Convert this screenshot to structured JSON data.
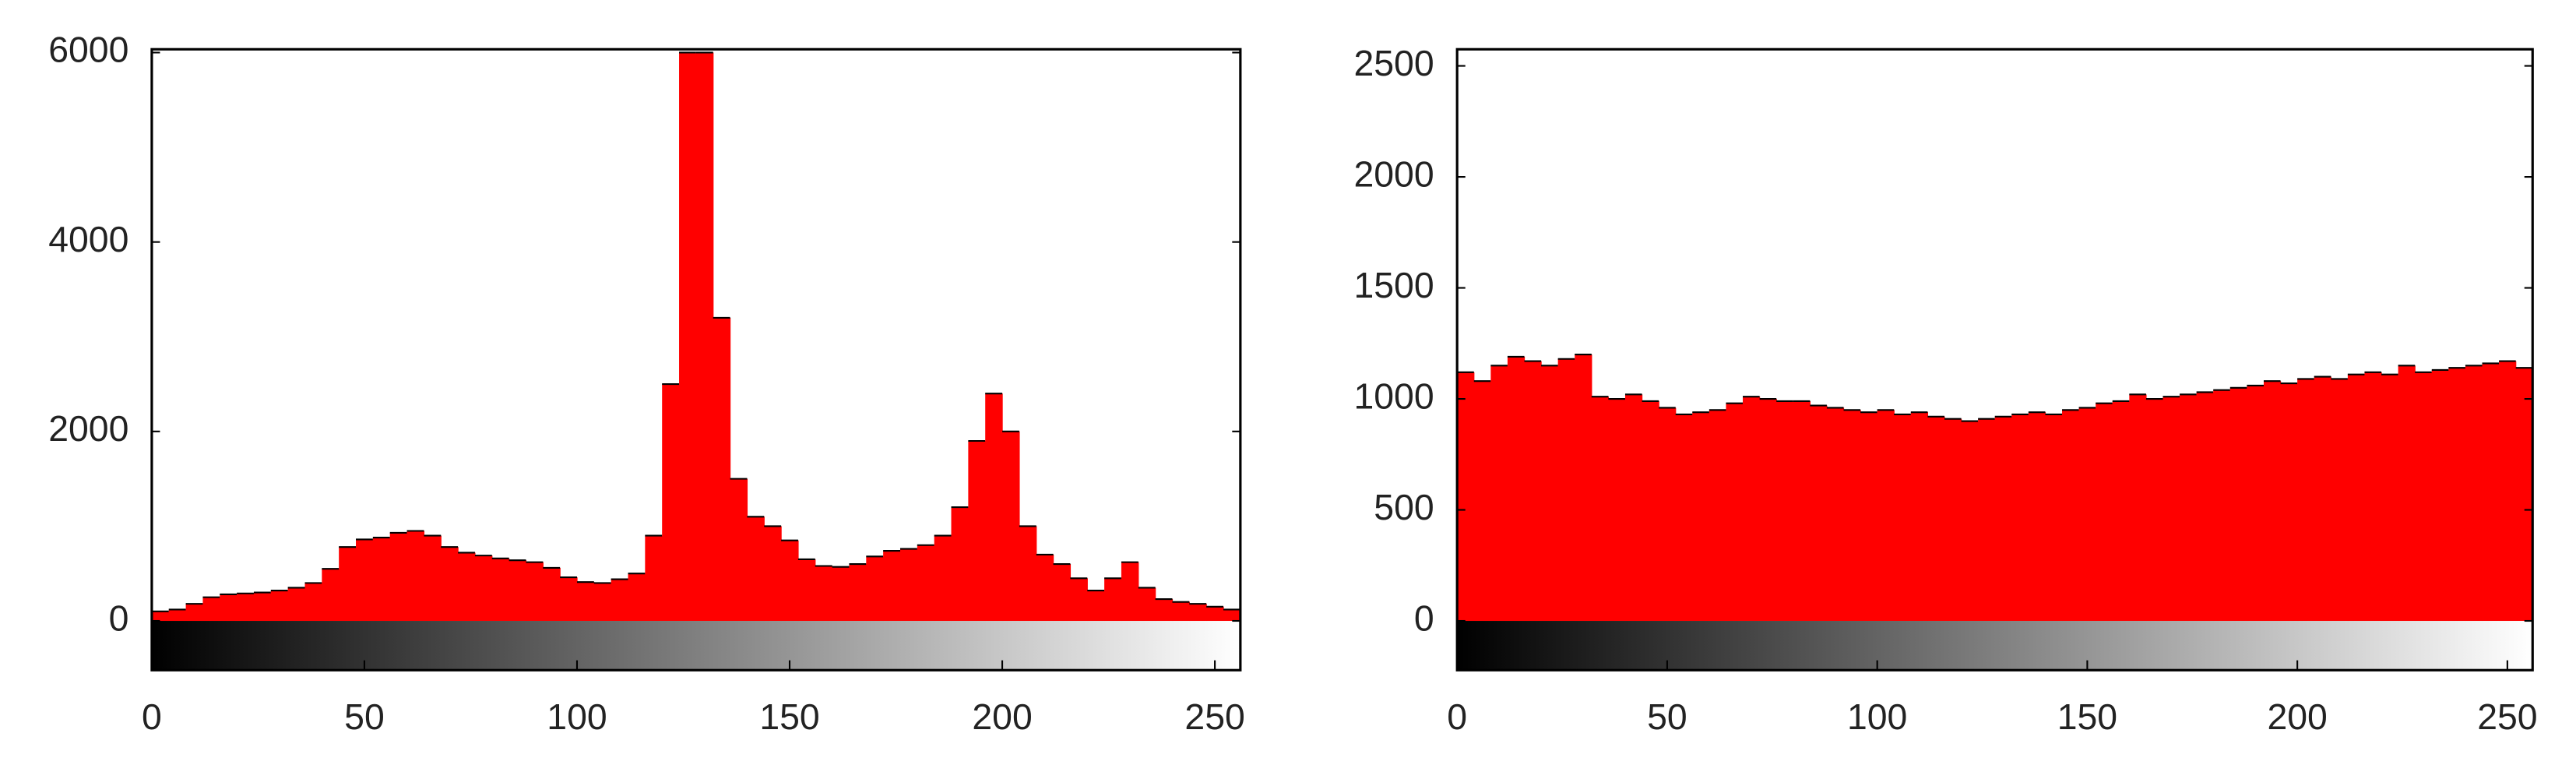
{
  "chart_data": [
    {
      "type": "histogram",
      "color": "#ff0000",
      "bins": [
        0,
        4,
        8,
        12,
        16,
        20,
        24,
        28,
        32,
        36,
        40,
        44,
        48,
        52,
        56,
        60,
        64,
        68,
        72,
        76,
        80,
        84,
        88,
        92,
        96,
        100,
        104,
        108,
        112,
        116,
        120,
        124,
        128,
        132,
        136,
        140,
        144,
        148,
        152,
        156,
        160,
        164,
        168,
        172,
        176,
        180,
        184,
        188,
        192,
        196,
        200,
        204,
        208,
        212,
        216,
        220,
        224,
        228,
        232,
        236,
        240,
        244,
        248,
        252,
        256
      ],
      "values": [
        100,
        120,
        180,
        250,
        280,
        290,
        300,
        320,
        350,
        400,
        550,
        780,
        860,
        880,
        930,
        950,
        900,
        780,
        720,
        690,
        660,
        640,
        620,
        560,
        460,
        410,
        400,
        440,
        500,
        900,
        2500,
        6000,
        6000,
        3200,
        1500,
        1100,
        1000,
        850,
        650,
        580,
        570,
        600,
        680,
        740,
        760,
        800,
        900,
        1200,
        1900,
        2400,
        2000,
        1000,
        700,
        600,
        450,
        320,
        450,
        620,
        350,
        230,
        200,
        180,
        150,
        120
      ],
      "xlim": [
        0,
        256
      ],
      "xticks": [
        0,
        50,
        100,
        150,
        200,
        250
      ],
      "ylim": [
        0,
        6000
      ],
      "yticks": [
        0,
        2000,
        4000,
        6000
      ]
    },
    {
      "type": "histogram",
      "color": "#ff0000",
      "bins": [
        0,
        4,
        8,
        12,
        16,
        20,
        24,
        28,
        32,
        36,
        40,
        44,
        48,
        52,
        56,
        60,
        64,
        68,
        72,
        76,
        80,
        84,
        88,
        92,
        96,
        100,
        104,
        108,
        112,
        116,
        120,
        124,
        128,
        132,
        136,
        140,
        144,
        148,
        152,
        156,
        160,
        164,
        168,
        172,
        176,
        180,
        184,
        188,
        192,
        196,
        200,
        204,
        208,
        212,
        216,
        220,
        224,
        228,
        232,
        236,
        240,
        244,
        248,
        252,
        256
      ],
      "values": [
        1120,
        1080,
        1150,
        1190,
        1170,
        1150,
        1180,
        1200,
        1010,
        1000,
        1020,
        990,
        960,
        930,
        940,
        950,
        980,
        1010,
        1000,
        990,
        990,
        970,
        960,
        950,
        940,
        950,
        930,
        940,
        920,
        910,
        900,
        910,
        920,
        930,
        940,
        930,
        950,
        960,
        980,
        990,
        1020,
        1000,
        1010,
        1020,
        1030,
        1040,
        1050,
        1060,
        1080,
        1070,
        1090,
        1100,
        1090,
        1110,
        1120,
        1110,
        1150,
        1120,
        1130,
        1140,
        1150,
        1160,
        1170,
        1140
      ],
      "xlim": [
        0,
        256
      ],
      "xticks": [
        0,
        50,
        100,
        150,
        200,
        250
      ],
      "ylim": [
        0,
        2560
      ],
      "yticks": [
        0,
        500,
        1000,
        1500,
        2000,
        2500
      ]
    }
  ]
}
